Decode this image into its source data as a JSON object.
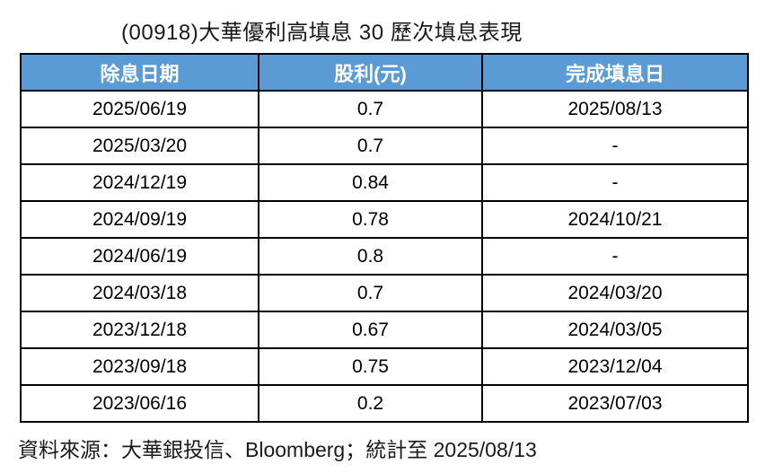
{
  "title": "(00918)大華優利高填息 30 歷次填息表現",
  "table": {
    "headers": {
      "ex_date": "除息日期",
      "dividend": "股利(元)",
      "fill_date": "完成填息日"
    },
    "rows": [
      {
        "ex_date": "2025/06/19",
        "dividend": "0.7",
        "fill_date": "2025/08/13"
      },
      {
        "ex_date": "2025/03/20",
        "dividend": "0.7",
        "fill_date": "-"
      },
      {
        "ex_date": "2024/12/19",
        "dividend": "0.84",
        "fill_date": "-"
      },
      {
        "ex_date": "2024/09/19",
        "dividend": "0.78",
        "fill_date": "2024/10/21"
      },
      {
        "ex_date": "2024/06/19",
        "dividend": "0.8",
        "fill_date": "-"
      },
      {
        "ex_date": "2024/03/18",
        "dividend": "0.7",
        "fill_date": "2024/03/20"
      },
      {
        "ex_date": "2023/12/18",
        "dividend": "0.67",
        "fill_date": "2024/03/05"
      },
      {
        "ex_date": "2023/09/18",
        "dividend": "0.75",
        "fill_date": "2023/12/04"
      },
      {
        "ex_date": "2023/06/16",
        "dividend": "0.2",
        "fill_date": "2023/07/03"
      }
    ]
  },
  "footer": "資料來源：大華銀投信、Bloomberg；統計至 2025/08/13",
  "colors": {
    "header_bg": "#5B9BD5",
    "header_text": "#FFFFFF",
    "border": "#000000",
    "body_text": "#000000"
  },
  "chart_data": {
    "type": "table",
    "title": "(00918)大華優利高填息 30 歷次填息表現",
    "columns": [
      "除息日期",
      "股利(元)",
      "完成填息日"
    ],
    "rows": [
      [
        "2025/06/19",
        0.7,
        "2025/08/13"
      ],
      [
        "2025/03/20",
        0.7,
        "-"
      ],
      [
        "2024/12/19",
        0.84,
        "-"
      ],
      [
        "2024/09/19",
        0.78,
        "2024/10/21"
      ],
      [
        "2024/06/19",
        0.8,
        "-"
      ],
      [
        "2024/03/18",
        0.7,
        "2024/03/20"
      ],
      [
        "2023/12/18",
        0.67,
        "2024/03/05"
      ],
      [
        "2023/09/18",
        0.75,
        "2023/12/04"
      ],
      [
        "2023/06/16",
        0.2,
        "2023/07/03"
      ]
    ],
    "source_note": "資料來源：大華銀投信、Bloomberg；統計至 2025/08/13"
  }
}
